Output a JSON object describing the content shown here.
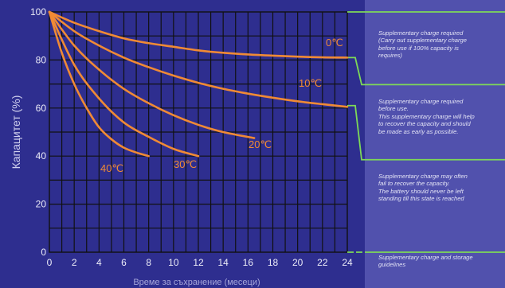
{
  "chart_data": {
    "type": "line",
    "xlabel": "Време за съхранение (месеци)",
    "ylabel": "Капацитет (%)",
    "xlim": [
      0,
      24
    ],
    "ylim": [
      0,
      100
    ],
    "x_ticks": [
      "0",
      "2",
      "4",
      "6",
      "8",
      "10",
      "12",
      "14",
      "16",
      "18",
      "20",
      "22",
      "24"
    ],
    "y_ticks": [
      "0",
      "20",
      "40",
      "60",
      "80",
      "100"
    ],
    "grid": true,
    "line_color": "#f08a35",
    "series": [
      {
        "name": "0℃",
        "x": [
          0,
          2,
          4,
          6,
          8,
          10,
          12,
          14,
          16,
          18,
          20,
          22,
          24
        ],
        "y": [
          100,
          95.5,
          92,
          89,
          87,
          85.5,
          84,
          83,
          82.3,
          81.8,
          81.4,
          81.1,
          81
        ]
      },
      {
        "name": "10℃",
        "x": [
          0,
          2,
          4,
          6,
          8,
          10,
          12,
          14,
          16,
          18,
          20,
          22,
          24
        ],
        "y": [
          100,
          92,
          86,
          81,
          77,
          73.5,
          70.5,
          68,
          66,
          64.3,
          62.8,
          61.6,
          60.5
        ]
      },
      {
        "name": "20℃",
        "x": [
          0,
          2,
          4,
          6,
          8,
          10,
          12,
          14,
          16.5
        ],
        "y": [
          100,
          86,
          76,
          68,
          62,
          57,
          53,
          50,
          47.5
        ]
      },
      {
        "name": "30℃",
        "x": [
          0,
          2,
          4,
          6,
          8,
          10,
          12
        ],
        "y": [
          100,
          78,
          64,
          54,
          48,
          43,
          40
        ]
      },
      {
        "name": "40℃",
        "x": [
          0,
          1,
          2,
          3,
          4,
          5,
          6,
          7,
          8
        ],
        "y": [
          100,
          83,
          70,
          60,
          52,
          47,
          43.5,
          41.5,
          40
        ]
      }
    ],
    "zones": {
      "border_color": "#7ed957",
      "items": [
        {
          "y_top": 100,
          "y_bottom": 81,
          "note": "Supplementary charge required\n(Carry out supplementary charge\nbefore use if 100% capacity is\nrequires)"
        },
        {
          "y_top": 81,
          "y_bottom": 61,
          "note": "Supplementary charge required\nbefore use.\nThis supplementary charge will help\nto recover the capacity and should\nbe made  as early as possible."
        },
        {
          "y_top": 61,
          "y_bottom": 0,
          "note": "Supplementary charge may often\nfail to recover the capacity.\nThe battery should never be left\nstanding till this state is reached"
        }
      ],
      "footer_note": "Supplementary charge and storage\nguidelines"
    }
  }
}
